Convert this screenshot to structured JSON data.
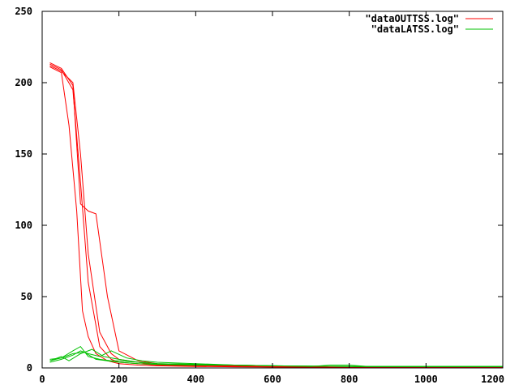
{
  "chart_data": {
    "type": "line",
    "title": "",
    "xlabel": "",
    "ylabel": "",
    "xlim": [
      0,
      1200
    ],
    "ylim": [
      0,
      250
    ],
    "xticks": [
      0,
      200,
      400,
      600,
      800,
      1000,
      1200
    ],
    "yticks": [
      0,
      50,
      100,
      150,
      200,
      250
    ],
    "xtick_labels": [
      "0",
      "200",
      "400",
      "600",
      "800",
      "1000",
      "1200"
    ],
    "ytick_labels": [
      "0",
      "50",
      "100",
      "150",
      "200",
      "250"
    ],
    "grid": false,
    "legend_position": "top-right",
    "legend": [
      {
        "label": "\"dataOUTTSS.log\"",
        "color": "#ff0000"
      },
      {
        "label": "\"dataLATSS.log\"",
        "color": "#00c000"
      }
    ],
    "series": [
      {
        "name": "\"dataOUTTSS.log\"",
        "color": "#ff0000",
        "x": [
          20,
          50,
          80,
          100,
          120,
          140,
          170,
          200,
          250,
          300,
          400,
          500,
          600,
          800,
          1000,
          1200
        ],
        "y": [
          214,
          210,
          198,
          115,
          110,
          108,
          50,
          12,
          5,
          3,
          2,
          1.5,
          1,
          0.5,
          0.5,
          0.5
        ]
      },
      {
        "name": "\"dataOUTTSS.log\"",
        "color": "#ff0000",
        "x": [
          20,
          50,
          80,
          100,
          120,
          150,
          180,
          200,
          250,
          300,
          400,
          500,
          600,
          800,
          1000,
          1200
        ],
        "y": [
          212,
          208,
          200,
          150,
          80,
          25,
          10,
          6,
          4,
          2,
          1.5,
          1,
          0.8,
          0.5,
          0.5,
          0.5
        ]
      },
      {
        "name": "\"dataOUTTSS.log\"",
        "color": "#ff0000",
        "x": [
          20,
          50,
          80,
          100,
          120,
          150,
          180,
          200,
          250,
          300,
          400,
          500,
          600,
          800,
          1000,
          1200
        ],
        "y": [
          213,
          209,
          195,
          130,
          60,
          15,
          6,
          4,
          3,
          2,
          1.5,
          1,
          0.8,
          0.5,
          0.5,
          0.5
        ]
      },
      {
        "name": "\"dataOUTTSS.log\"",
        "color": "#ff0000",
        "x": [
          20,
          50,
          70,
          90,
          105,
          120,
          140,
          170,
          200,
          250,
          300,
          400,
          500,
          600,
          800,
          1000,
          1200
        ],
        "y": [
          211,
          207,
          170,
          110,
          40,
          22,
          10,
          5,
          3,
          2,
          1.5,
          1,
          0.8,
          0.6,
          0.5,
          0.5,
          0.5
        ]
      },
      {
        "name": "\"dataLATSS.log\"",
        "color": "#00c000",
        "x": [
          20,
          50,
          80,
          100,
          120,
          150,
          180,
          200,
          250,
          300,
          400,
          500,
          600,
          800,
          1000,
          1200
        ],
        "y": [
          6,
          7,
          12,
          15,
          8,
          6,
          5,
          5,
          4,
          3,
          2.5,
          2,
          1.5,
          1,
          1,
          1
        ]
      },
      {
        "name": "\"dataLATSS.log\"",
        "color": "#00c000",
        "x": [
          20,
          50,
          70,
          100,
          130,
          160,
          200,
          250,
          300,
          400,
          500,
          600,
          800,
          1000,
          1200
        ],
        "y": [
          5,
          8,
          5,
          10,
          13,
          8,
          6,
          4,
          3,
          2.5,
          2,
          1.5,
          1,
          1,
          1
        ]
      },
      {
        "name": "\"dataLATSS.log\"",
        "color": "#00c000",
        "x": [
          20,
          50,
          80,
          100,
          120,
          150,
          180,
          220,
          260,
          300,
          400,
          500,
          600,
          800,
          1000,
          1200
        ],
        "y": [
          4,
          6,
          9,
          12,
          10,
          8,
          12,
          7,
          5,
          4,
          3,
          2,
          1.5,
          1,
          1,
          1
        ]
      },
      {
        "name": "\"dataLATSS.log\"",
        "color": "#00c000",
        "x": [
          20,
          50,
          80,
          110,
          140,
          170,
          200,
          250,
          300,
          400,
          500,
          600,
          700,
          750,
          800,
          850,
          1000,
          1200
        ],
        "y": [
          5,
          7,
          10,
          11,
          6,
          5,
          4,
          3,
          2.5,
          2,
          2,
          1.5,
          1,
          2,
          2,
          1,
          1,
          1
        ]
      }
    ]
  }
}
